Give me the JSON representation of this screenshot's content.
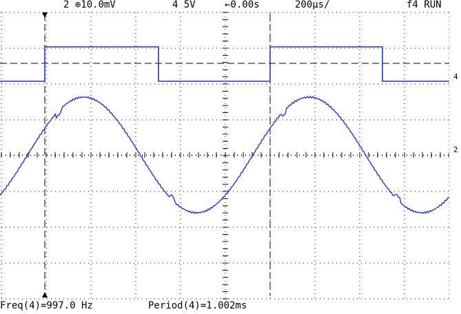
{
  "header": {
    "channel2": "2 ⊕10.0mV",
    "channel4": "4 5V",
    "delay": "←0.00s",
    "timebase": "200µs/",
    "trigger": "f4 RUN"
  },
  "markers": {
    "ch4": "4",
    "ch2": "2"
  },
  "footer": {
    "freq": "Freq(4)=997.0 Hz",
    "period": "Period(4)=1.002ms"
  }
}
